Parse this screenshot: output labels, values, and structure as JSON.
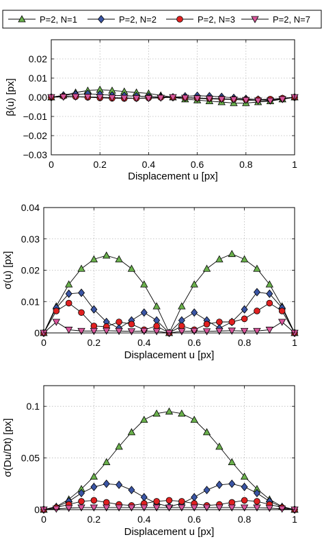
{
  "legend": {
    "placement": "top",
    "entries": [
      {
        "label": "P=2, N=1",
        "color": "#6ab04c",
        "marker": "triangle-up"
      },
      {
        "label": "P=2, N=2",
        "color": "#3a55a4",
        "marker": "diamond"
      },
      {
        "label": "P=2, N=3",
        "color": "#e02020",
        "marker": "circle"
      },
      {
        "label": "P=2, N=7",
        "color": "#d9559b",
        "marker": "triangle-down"
      }
    ]
  },
  "chart_data": [
    {
      "type": "line",
      "title": "",
      "xlabel": "Displacement u [px]",
      "ylabel": "β(u) [px]",
      "xlim": [
        0,
        1
      ],
      "ylim": [
        -0.03,
        0.03
      ],
      "xticks": [
        0,
        0.2,
        0.4,
        0.6,
        0.8,
        1
      ],
      "xtick_labels": [
        "0",
        "0.2",
        "0.4",
        "0.6",
        "0.8",
        "1"
      ],
      "yticks": [
        -0.03,
        -0.02,
        -0.01,
        0,
        0.01,
        0.02
      ],
      "ytick_labels": [
        "−0.03",
        "−0.02",
        "−0.01",
        "0.00",
        "0.01",
        "0.02"
      ],
      "grid": true,
      "x": [
        0,
        0.05,
        0.1,
        0.15,
        0.2,
        0.25,
        0.3,
        0.35,
        0.4,
        0.45,
        0.5,
        0.55,
        0.6,
        0.65,
        0.7,
        0.75,
        0.8,
        0.85,
        0.9,
        0.95,
        1
      ],
      "series": [
        {
          "name": "P=2, N=1",
          "values": [
            0,
            0.001,
            0.0025,
            0.0035,
            0.004,
            0.0035,
            0.003,
            0.0025,
            0.002,
            0.001,
            0,
            -0.001,
            -0.0015,
            -0.002,
            -0.0025,
            -0.003,
            -0.003,
            -0.0025,
            -0.002,
            -0.001,
            0
          ]
        },
        {
          "name": "P=2, N=2",
          "values": [
            0,
            0.001,
            0.0015,
            0.0018,
            0.0015,
            0.001,
            0.0008,
            0.0006,
            0.0004,
            0.0002,
            0,
            0.0005,
            0.0008,
            0.0006,
            0.0002,
            -0.0003,
            -0.0008,
            -0.0012,
            -0.0015,
            -0.0008,
            0
          ]
        },
        {
          "name": "P=2, N=3",
          "values": [
            0,
            0.0005,
            0.0003,
            0,
            -0.0003,
            -0.0005,
            -0.0006,
            -0.0005,
            -0.0003,
            -0.0001,
            0,
            -0.0002,
            -0.0004,
            -0.0006,
            -0.0008,
            -0.001,
            -0.0012,
            -0.0012,
            -0.001,
            -0.0005,
            0
          ]
        },
        {
          "name": "P=2, N=7",
          "values": [
            0,
            0.0002,
            0.0003,
            0.0002,
            0,
            -0.0002,
            -0.0004,
            -0.0005,
            -0.0005,
            -0.0003,
            0,
            -0.0003,
            -0.0006,
            -0.0008,
            -0.001,
            -0.0012,
            -0.0015,
            -0.0018,
            -0.0018,
            -0.001,
            0
          ]
        }
      ]
    },
    {
      "type": "line",
      "title": "",
      "xlabel": "Displacement u [px]",
      "ylabel": "σ(u) [px]",
      "xlim": [
        0,
        1
      ],
      "ylim": [
        0,
        0.04
      ],
      "xticks": [
        0,
        0.2,
        0.4,
        0.6,
        0.8,
        1
      ],
      "xtick_labels": [
        "0",
        "0.2",
        "0.4",
        "0.6",
        "0.8",
        "1"
      ],
      "yticks": [
        0,
        0.01,
        0.02,
        0.03,
        0.04
      ],
      "ytick_labels": [
        "0",
        "0.01",
        "0.02",
        "0.03",
        "0.04"
      ],
      "grid": true,
      "x": [
        0,
        0.05,
        0.1,
        0.15,
        0.2,
        0.25,
        0.3,
        0.35,
        0.4,
        0.45,
        0.5,
        0.55,
        0.6,
        0.65,
        0.7,
        0.75,
        0.8,
        0.85,
        0.9,
        0.95,
        1
      ],
      "series": [
        {
          "name": "P=2, N=1",
          "values": [
            0,
            0.0085,
            0.0155,
            0.0205,
            0.0235,
            0.0247,
            0.0235,
            0.0205,
            0.0155,
            0.0085,
            0,
            0.0085,
            0.0155,
            0.0205,
            0.0235,
            0.0252,
            0.0235,
            0.0205,
            0.0155,
            0.0085,
            0
          ]
        },
        {
          "name": "P=2, N=2",
          "values": [
            0,
            0.008,
            0.0125,
            0.0128,
            0.0075,
            0.0035,
            0.0015,
            0.004,
            0.0065,
            0.004,
            0,
            0.004,
            0.0065,
            0.004,
            0.0015,
            0.0035,
            0.0075,
            0.013,
            0.0125,
            0.008,
            0
          ]
        },
        {
          "name": "P=2, N=3",
          "values": [
            0,
            0.007,
            0.0095,
            0.0065,
            0.0022,
            0.002,
            0.0035,
            0.0028,
            0.001,
            0.0022,
            0,
            0.0022,
            0.001,
            0.0028,
            0.0035,
            0.0035,
            0.0045,
            0.007,
            0.0095,
            0.007,
            0
          ]
        },
        {
          "name": "P=2, N=7",
          "values": [
            0,
            0.0035,
            0.001,
            0.0006,
            0.0006,
            0.0007,
            0.0006,
            0.0005,
            0.0006,
            0.0005,
            0,
            0.0005,
            0.0006,
            0.0005,
            0.0006,
            0.0007,
            0.0006,
            0.0006,
            0.001,
            0.0035,
            0
          ]
        }
      ]
    },
    {
      "type": "line",
      "title": "",
      "xlabel": "Displacement u [px]",
      "ylabel": "σ(Du/Dt) [px]",
      "xlim": [
        0,
        1
      ],
      "ylim": [
        0,
        0.12
      ],
      "xticks": [
        0,
        0.2,
        0.4,
        0.6,
        0.8,
        1
      ],
      "xtick_labels": [
        "0",
        "0.2",
        "0.4",
        "0.6",
        "0.8",
        "1"
      ],
      "yticks": [
        0,
        0.05,
        0.1
      ],
      "ytick_labels": [
        "0",
        "0.05",
        "0.1"
      ],
      "grid": true,
      "x": [
        0,
        0.05,
        0.1,
        0.15,
        0.2,
        0.25,
        0.3,
        0.35,
        0.4,
        0.45,
        0.5,
        0.55,
        0.6,
        0.65,
        0.7,
        0.75,
        0.8,
        0.85,
        0.9,
        0.95,
        1
      ],
      "series": [
        {
          "name": "P=2, N=1",
          "values": [
            0,
            0.003,
            0.01,
            0.02,
            0.032,
            0.046,
            0.061,
            0.075,
            0.087,
            0.093,
            0.095,
            0.093,
            0.087,
            0.075,
            0.061,
            0.046,
            0.032,
            0.02,
            0.01,
            0.003,
            0
          ]
        },
        {
          "name": "P=2, N=2",
          "values": [
            0,
            0.0025,
            0.008,
            0.016,
            0.022,
            0.025,
            0.024,
            0.019,
            0.012,
            0.006,
            0.003,
            0.006,
            0.012,
            0.019,
            0.024,
            0.025,
            0.022,
            0.016,
            0.008,
            0.0025,
            0
          ]
        },
        {
          "name": "P=2, N=3",
          "values": [
            0,
            0.002,
            0.005,
            0.008,
            0.009,
            0.007,
            0.005,
            0.004,
            0.006,
            0.008,
            0.009,
            0.008,
            0.006,
            0.004,
            0.005,
            0.007,
            0.009,
            0.008,
            0.005,
            0.002,
            0
          ]
        },
        {
          "name": "P=2, N=7",
          "values": [
            0,
            0.0008,
            0.0015,
            0.002,
            0.002,
            0.002,
            0.002,
            0.002,
            0.002,
            0.002,
            0.002,
            0.002,
            0.002,
            0.002,
            0.002,
            0.002,
            0.002,
            0.002,
            0.0015,
            0.0008,
            0
          ]
        }
      ]
    }
  ]
}
